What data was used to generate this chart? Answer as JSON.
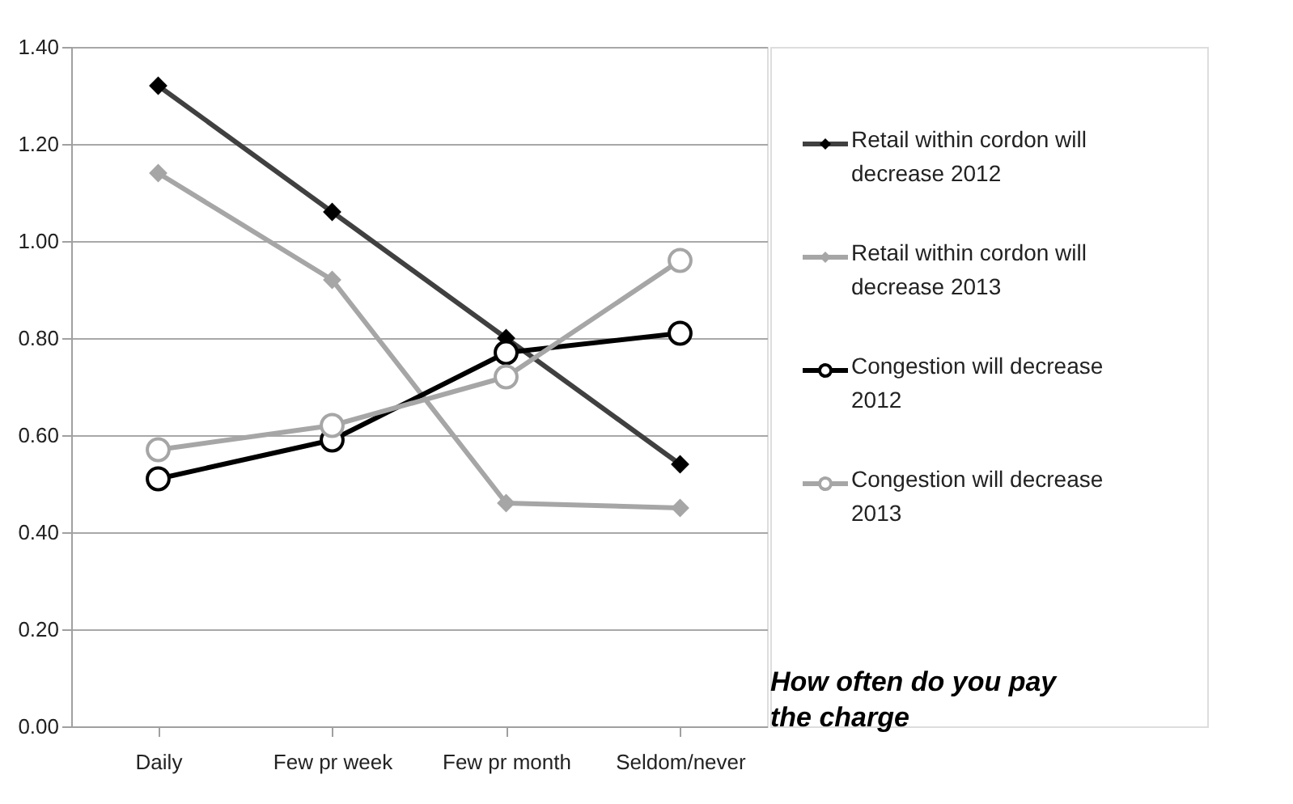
{
  "chart_data": {
    "type": "line",
    "xlabel": "How often do you pay the charge",
    "categories": [
      "Daily",
      "Few pr week",
      "Few pr month",
      "Seldom/never"
    ],
    "series": [
      {
        "name": "Retail within cordon will decrease 2012",
        "color": "#404040",
        "marker": "diamond",
        "values": [
          1.32,
          1.06,
          0.8,
          0.54
        ]
      },
      {
        "name": "Retail within cordon will decrease 2013",
        "color": "#a6a6a6",
        "marker": "diamond",
        "values": [
          1.14,
          0.92,
          0.46,
          0.45
        ]
      },
      {
        "name": "Congestion will decrease 2012",
        "color": "#000000",
        "marker": "circle",
        "values": [
          0.51,
          0.59,
          0.77,
          0.81
        ]
      },
      {
        "name": "Congestion will decrease 2013",
        "color": "#a6a6a6",
        "marker": "circle",
        "values": [
          0.57,
          0.62,
          0.72,
          0.96
        ]
      }
    ],
    "ylim": [
      0,
      1.4
    ],
    "yticks": [
      {
        "value": 0,
        "label": "0.00"
      },
      {
        "value": 0.2,
        "label": "0.20"
      },
      {
        "value": 0.4,
        "label": "0.40"
      },
      {
        "value": 0.6,
        "label": "0.60"
      },
      {
        "value": 0.8,
        "label": "0.80"
      },
      {
        "value": 1.0,
        "label": "1.00"
      },
      {
        "value": 1.2,
        "label": "1.20"
      },
      {
        "value": 1.4,
        "label": "1.40"
      }
    ],
    "grid": "y",
    "legend": "right",
    "line_style": "solid"
  }
}
